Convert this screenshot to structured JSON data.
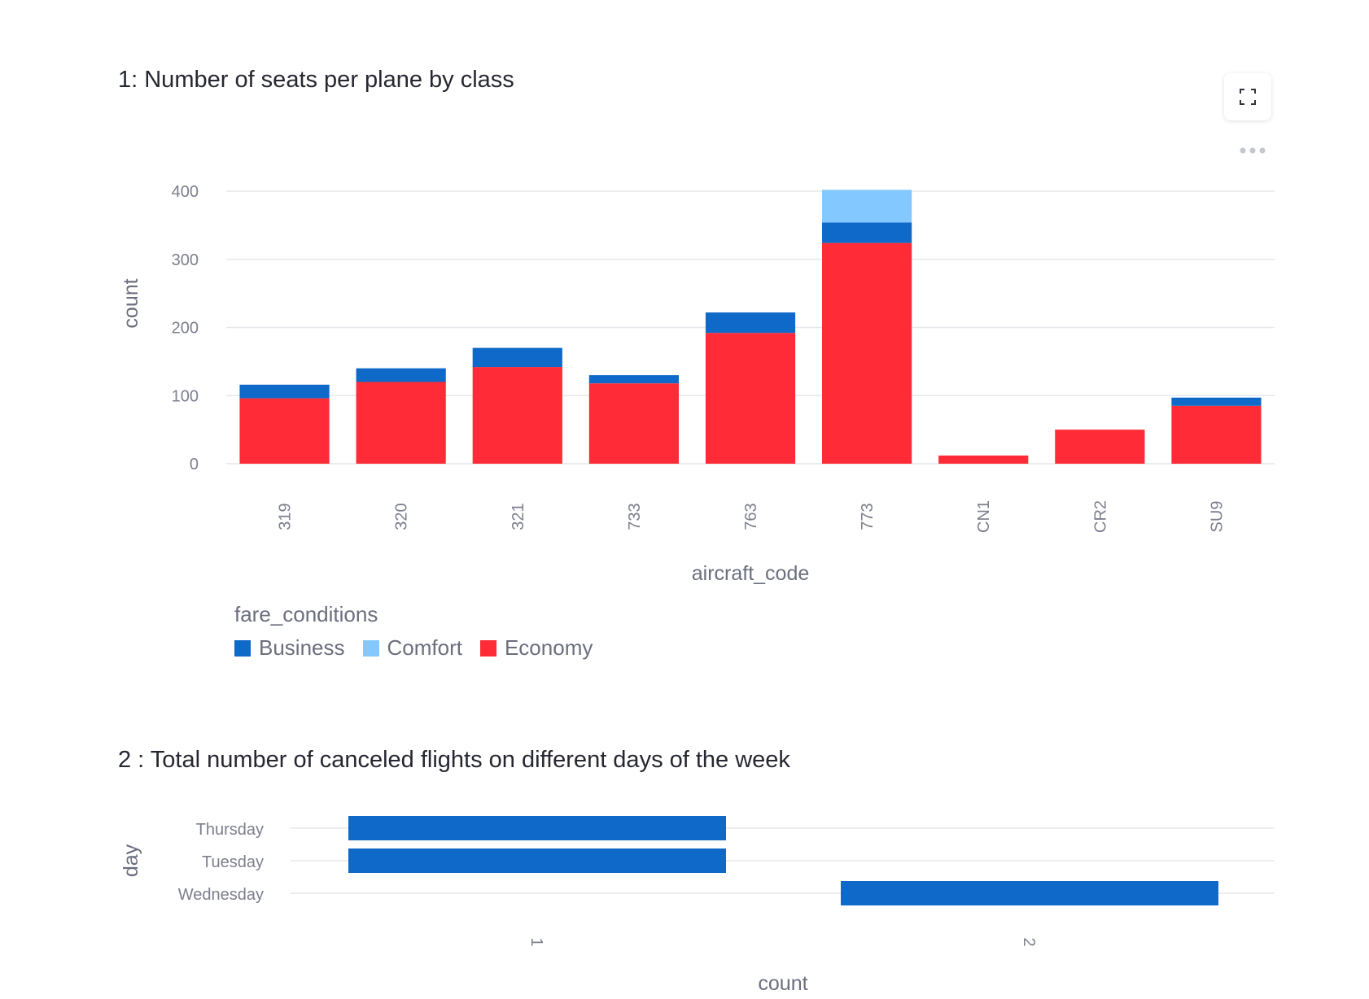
{
  "charts": {
    "chart1_title": "1: Number of seats per plane by class",
    "chart2_title": "2 : Total number of canceled flights on different days of the week"
  },
  "toolbar": {
    "fullscreen_icon": "fullscreen-icon",
    "more_icon": "more-options-icon"
  },
  "legend": {
    "title": "fare_conditions",
    "items": [
      {
        "label": "Business",
        "color": "#0f69c8"
      },
      {
        "label": "Comfort",
        "color": "#83c9ff"
      },
      {
        "label": "Economy",
        "color": "#ff2b36"
      }
    ]
  },
  "chart_data": [
    {
      "type": "bar",
      "stacked": true,
      "orientation": "vertical",
      "title": "1: Number of seats per plane by class",
      "xlabel": "aircraft_code",
      "ylabel": "count",
      "categories": [
        "319",
        "320",
        "321",
        "733",
        "763",
        "773",
        "CN1",
        "CR2",
        "SU9"
      ],
      "series": [
        {
          "name": "Economy",
          "color": "#ff2b36",
          "values": [
            96,
            120,
            142,
            118,
            192,
            324,
            12,
            50,
            85
          ]
        },
        {
          "name": "Business",
          "color": "#0f69c8",
          "values": [
            20,
            20,
            28,
            12,
            30,
            30,
            0,
            0,
            12
          ]
        },
        {
          "name": "Comfort",
          "color": "#83c9ff",
          "values": [
            0,
            0,
            0,
            0,
            0,
            48,
            0,
            0,
            0
          ]
        }
      ],
      "ylim": [
        0,
        400
      ],
      "yticks": [
        0,
        100,
        200,
        300,
        400
      ],
      "grid": true,
      "legend_position": "bottom-left"
    },
    {
      "type": "bar",
      "orientation": "horizontal",
      "title": "2 : Total number of canceled flights on different days of the week",
      "xlabel": "count",
      "ylabel": "day",
      "categories": [
        "Thursday",
        "Tuesday",
        "Wednesday"
      ],
      "values": [
        1,
        1,
        2
      ],
      "color": "#0f69c8",
      "xticks": [
        1,
        2
      ],
      "grid": true
    }
  ]
}
